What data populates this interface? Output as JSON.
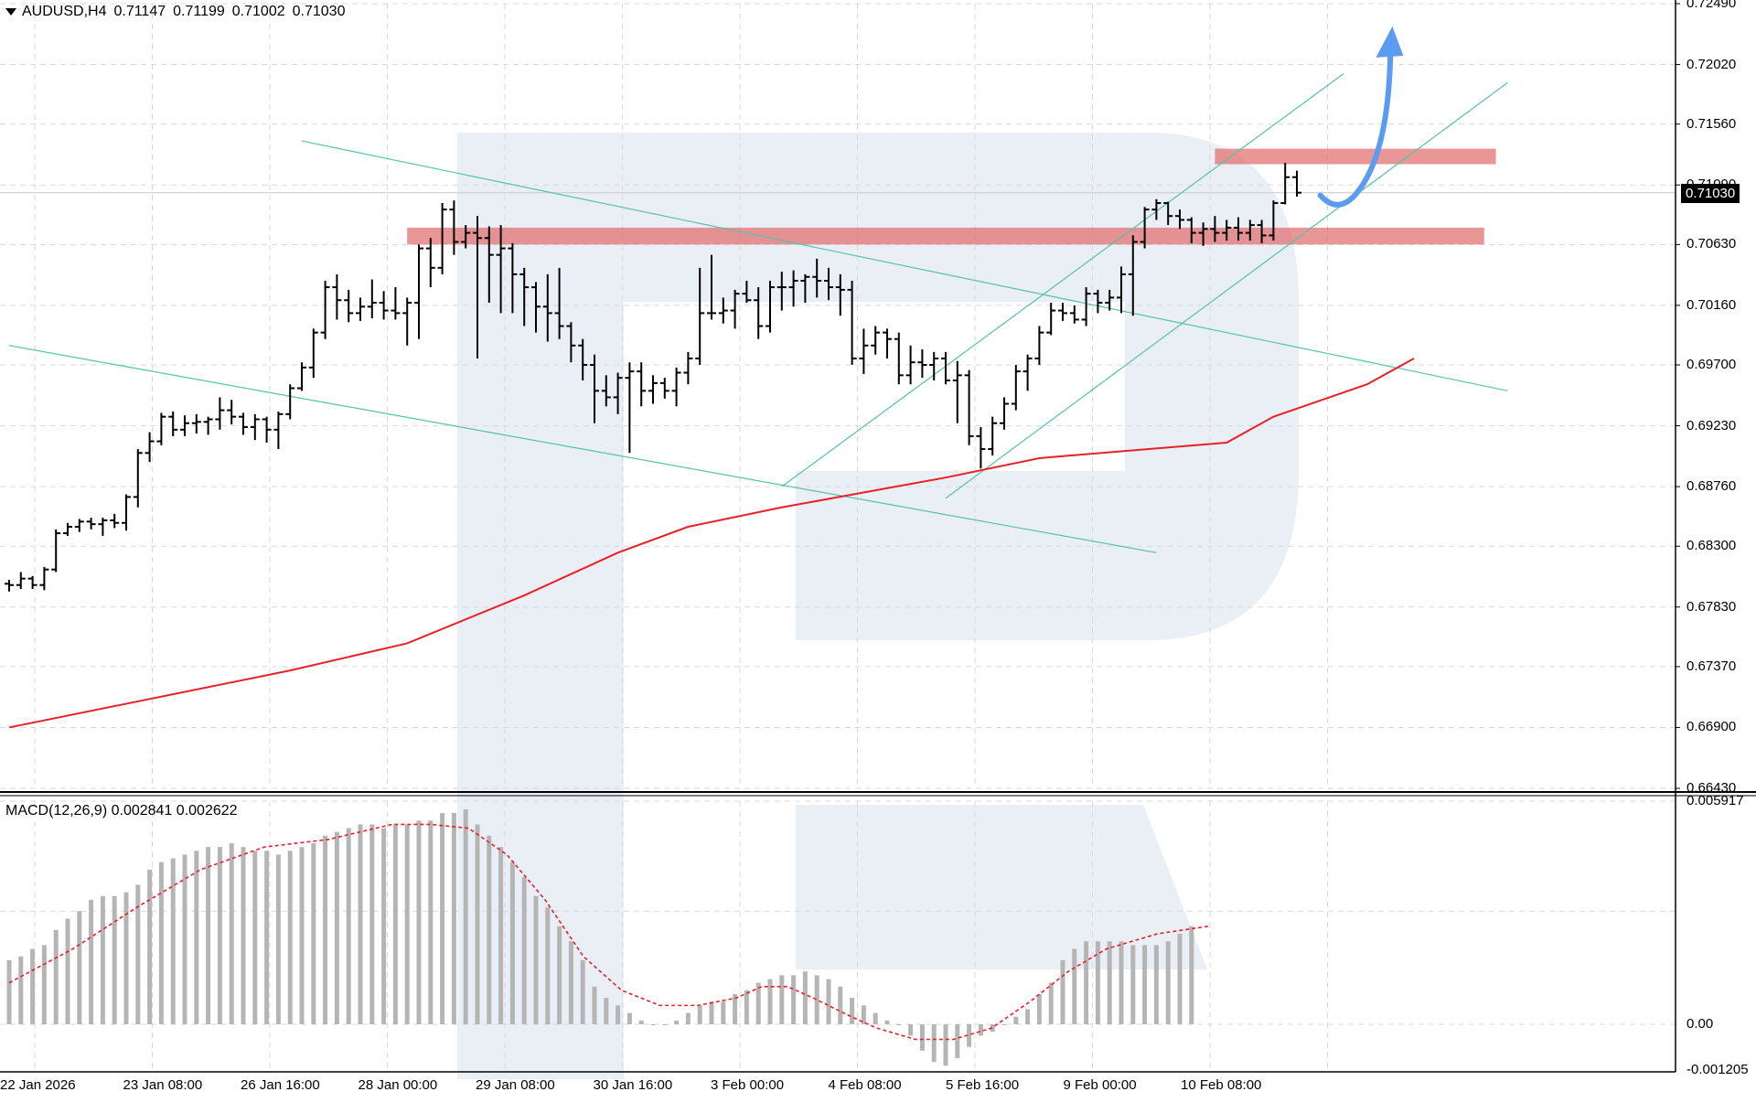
{
  "legend": {
    "symbol": "AUDUSD,H4",
    "open": "0.71147",
    "high": "0.71199",
    "low": "0.71002",
    "close": "0.71030"
  },
  "macd_legend": {
    "name": "MACD(12,26,9)",
    "main": "0.002841",
    "signal": "0.002622"
  },
  "current_price": "0.71030",
  "colors": {
    "grid": "#d9d9d9",
    "bars": "#000000",
    "ma": "#e8202a",
    "channel": "#55c3a6",
    "zone": "#e06a6a",
    "arrow": "#5b9bf0",
    "histogram": "#b5b5b5",
    "signal": "#e8202a",
    "watermark": "#e6ebf3"
  },
  "chart_data": [
    {
      "type": "ohlc",
      "title": "AUDUSD,H4",
      "ylim": [
        0.6643,
        0.7249
      ],
      "y_ticks": [
        "0.72490",
        "0.72020",
        "0.71560",
        "0.71090",
        "0.70630",
        "0.70160",
        "0.69700",
        "0.69230",
        "0.68760",
        "0.68300",
        "0.67830",
        "0.67370",
        "0.66900",
        "0.66430"
      ],
      "x_ticks": [
        "22 Jan 2026",
        "23 Jan 08:00",
        "26 Jan 16:00",
        "28 Jan 00:00",
        "29 Jan 08:00",
        "30 Jan 16:00",
        "3 Feb 00:00",
        "4 Feb 08:00",
        "5 Feb 16:00",
        "9 Feb 00:00",
        "10 Feb 08:00"
      ],
      "grid": true,
      "bars": [
        [
          0.6801,
          0.6804,
          0.6795,
          0.68
        ],
        [
          0.68,
          0.681,
          0.6797,
          0.6805
        ],
        [
          0.6805,
          0.6807,
          0.6797,
          0.68
        ],
        [
          0.68,
          0.6814,
          0.6796,
          0.6812
        ],
        [
          0.6812,
          0.6843,
          0.681,
          0.684
        ],
        [
          0.684,
          0.6848,
          0.6838,
          0.6845
        ],
        [
          0.6845,
          0.6851,
          0.6841,
          0.6849
        ],
        [
          0.6849,
          0.6852,
          0.6843,
          0.6847
        ],
        [
          0.6847,
          0.6852,
          0.6838,
          0.685
        ],
        [
          0.685,
          0.6855,
          0.6844,
          0.6848
        ],
        [
          0.6848,
          0.687,
          0.6842,
          0.6868
        ],
        [
          0.6868,
          0.6905,
          0.686,
          0.6902
        ],
        [
          0.6902,
          0.6918,
          0.6895,
          0.6911
        ],
        [
          0.6911,
          0.6933,
          0.6908,
          0.693
        ],
        [
          0.693,
          0.6934,
          0.6915,
          0.692
        ],
        [
          0.692,
          0.6931,
          0.6915,
          0.6925
        ],
        [
          0.6925,
          0.6932,
          0.6917,
          0.6926
        ],
        [
          0.6926,
          0.693,
          0.6916,
          0.6928
        ],
        [
          0.6928,
          0.6945,
          0.692,
          0.6935
        ],
        [
          0.6935,
          0.6943,
          0.6924,
          0.693
        ],
        [
          0.693,
          0.6933,
          0.6916,
          0.6922
        ],
        [
          0.6922,
          0.6932,
          0.6912,
          0.6928
        ],
        [
          0.6928,
          0.693,
          0.691,
          0.692
        ],
        [
          0.692,
          0.6934,
          0.6905,
          0.6932
        ],
        [
          0.6932,
          0.6955,
          0.6928,
          0.6952
        ],
        [
          0.6952,
          0.6972,
          0.695,
          0.6968
        ],
        [
          0.6968,
          0.6998,
          0.696,
          0.6995
        ],
        [
          0.6995,
          0.7035,
          0.699,
          0.703
        ],
        [
          0.703,
          0.704,
          0.7005,
          0.702
        ],
        [
          0.702,
          0.7028,
          0.7003,
          0.701
        ],
        [
          0.701,
          0.7022,
          0.7004,
          0.7015
        ],
        [
          0.7015,
          0.7036,
          0.7006,
          0.7018
        ],
        [
          0.7018,
          0.7027,
          0.7005,
          0.7012
        ],
        [
          0.7012,
          0.703,
          0.7005,
          0.701
        ],
        [
          0.701,
          0.7022,
          0.6985,
          0.7018
        ],
        [
          0.7018,
          0.7063,
          0.699,
          0.706
        ],
        [
          0.706,
          0.7068,
          0.703,
          0.7045
        ],
        [
          0.7045,
          0.7095,
          0.704,
          0.709
        ],
        [
          0.709,
          0.7097,
          0.7055,
          0.7065
        ],
        [
          0.7065,
          0.7078,
          0.706,
          0.7072
        ],
        [
          0.7072,
          0.7085,
          0.6975,
          0.7068
        ],
        [
          0.7068,
          0.7077,
          0.7018,
          0.7055
        ],
        [
          0.7055,
          0.7078,
          0.701,
          0.706
        ],
        [
          0.706,
          0.7064,
          0.701,
          0.704
        ],
        [
          0.704,
          0.7045,
          0.7,
          0.703
        ],
        [
          0.703,
          0.7034,
          0.6995,
          0.7015
        ],
        [
          0.7015,
          0.704,
          0.6988,
          0.701
        ],
        [
          0.701,
          0.7045,
          0.699,
          0.7
        ],
        [
          0.7,
          0.7003,
          0.6972,
          0.6985
        ],
        [
          0.6985,
          0.699,
          0.6958,
          0.697
        ],
        [
          0.697,
          0.6978,
          0.6925,
          0.695
        ],
        [
          0.695,
          0.6962,
          0.6938,
          0.6945
        ],
        [
          0.6945,
          0.6964,
          0.6932,
          0.696
        ],
        [
          0.696,
          0.6972,
          0.6902,
          0.6965
        ],
        [
          0.6965,
          0.6972,
          0.6938,
          0.695
        ],
        [
          0.695,
          0.6962,
          0.694,
          0.6956
        ],
        [
          0.6956,
          0.696,
          0.6944,
          0.695
        ],
        [
          0.695,
          0.6968,
          0.6938,
          0.6964
        ],
        [
          0.6964,
          0.698,
          0.6955,
          0.6975
        ],
        [
          0.6975,
          0.7045,
          0.697,
          0.701
        ],
        [
          0.701,
          0.7055,
          0.7005,
          0.701
        ],
        [
          0.701,
          0.7022,
          0.7002,
          0.7012
        ],
        [
          0.7012,
          0.7028,
          0.6998,
          0.7025
        ],
        [
          0.7025,
          0.7035,
          0.7018,
          0.702
        ],
        [
          0.702,
          0.703,
          0.699,
          0.7
        ],
        [
          0.7,
          0.7035,
          0.6995,
          0.703
        ],
        [
          0.703,
          0.7042,
          0.7012,
          0.703
        ],
        [
          0.703,
          0.7043,
          0.7015,
          0.7035
        ],
        [
          0.7035,
          0.704,
          0.7018,
          0.7038
        ],
        [
          0.7038,
          0.7052,
          0.7022,
          0.7035
        ],
        [
          0.7035,
          0.7045,
          0.702,
          0.703
        ],
        [
          0.703,
          0.704,
          0.7008,
          0.7028
        ],
        [
          0.7028,
          0.7035,
          0.697,
          0.6975
        ],
        [
          0.6975,
          0.6998,
          0.6963,
          0.6985
        ],
        [
          0.6985,
          0.7,
          0.6978,
          0.6995
        ],
        [
          0.6995,
          0.6998,
          0.6975,
          0.699
        ],
        [
          0.699,
          0.6995,
          0.6955,
          0.6962
        ],
        [
          0.6962,
          0.6985,
          0.6955,
          0.6972
        ],
        [
          0.6972,
          0.6982,
          0.696,
          0.697
        ],
        [
          0.697,
          0.698,
          0.6958,
          0.6975
        ],
        [
          0.6975,
          0.698,
          0.6955,
          0.6958
        ],
        [
          0.6958,
          0.6973,
          0.6925,
          0.6962
        ],
        [
          0.6962,
          0.6966,
          0.6908,
          0.6915
        ],
        [
          0.6915,
          0.6922,
          0.689,
          0.6905
        ],
        [
          0.6905,
          0.693,
          0.69,
          0.6925
        ],
        [
          0.6925,
          0.6945,
          0.692,
          0.694
        ],
        [
          0.694,
          0.697,
          0.6935,
          0.6965
        ],
        [
          0.6965,
          0.6978,
          0.695,
          0.6975
        ],
        [
          0.6975,
          0.7,
          0.697,
          0.6995
        ],
        [
          0.6995,
          0.7018,
          0.6993,
          0.7012
        ],
        [
          0.7012,
          0.7018,
          0.7004,
          0.701
        ],
        [
          0.701,
          0.7016,
          0.7002,
          0.7005
        ],
        [
          0.7005,
          0.703,
          0.7,
          0.7025
        ],
        [
          0.7025,
          0.7028,
          0.701,
          0.7018
        ],
        [
          0.7018,
          0.7028,
          0.7012,
          0.7022
        ],
        [
          0.7022,
          0.7046,
          0.701,
          0.704
        ],
        [
          0.704,
          0.707,
          0.7008,
          0.7065
        ],
        [
          0.7065,
          0.7092,
          0.706,
          0.709
        ],
        [
          0.709,
          0.7098,
          0.7082,
          0.7095
        ],
        [
          0.7095,
          0.7096,
          0.7078,
          0.7085
        ],
        [
          0.7085,
          0.709,
          0.7075,
          0.7082
        ],
        [
          0.7082,
          0.7084,
          0.7064,
          0.7072
        ],
        [
          0.7072,
          0.708,
          0.7062,
          0.7075
        ],
        [
          0.7075,
          0.7085,
          0.7065,
          0.7072
        ],
        [
          0.7072,
          0.7082,
          0.7066,
          0.7076
        ],
        [
          0.7076,
          0.7084,
          0.7066,
          0.7072
        ],
        [
          0.7072,
          0.7082,
          0.7066,
          0.7078
        ],
        [
          0.7078,
          0.7082,
          0.7064,
          0.707
        ],
        [
          0.707,
          0.7097,
          0.7066,
          0.7095
        ],
        [
          0.7095,
          0.7126,
          0.7094,
          0.7115
        ],
        [
          0.7115,
          0.712,
          0.71,
          0.7103
        ]
      ],
      "moving_average": [
        [
          0,
          0.669
        ],
        [
          12,
          0.6712
        ],
        [
          24,
          0.6734
        ],
        [
          34,
          0.6755
        ],
        [
          44,
          0.6792
        ],
        [
          52,
          0.6825
        ],
        [
          58,
          0.6845
        ],
        [
          66,
          0.686
        ],
        [
          80,
          0.6883
        ],
        [
          88,
          0.6898
        ],
        [
          104,
          0.691
        ],
        [
          108,
          0.693
        ],
        [
          116,
          0.6955
        ],
        [
          120,
          0.6975
        ]
      ],
      "channel_lines": [
        {
          "from": [
            0,
            0.6985
          ],
          "to": [
            98,
            0.6825
          ]
        },
        {
          "from": [
            25,
            0.7143
          ],
          "to": [
            128,
            0.695
          ]
        },
        {
          "from": [
            66,
            0.6876
          ],
          "to": [
            114,
            0.7195
          ]
        },
        {
          "from": [
            80,
            0.6867
          ],
          "to": [
            128,
            0.7188
          ]
        }
      ],
      "zones": [
        {
          "from": 34,
          "to": 126,
          "low": 0.7063,
          "high": 0.7076
        },
        {
          "from": 103,
          "to": 127,
          "low": 0.7125,
          "high": 0.7137
        }
      ],
      "forecast_path": [
        [
          112,
          0.7101
        ],
        [
          114,
          0.7094
        ],
        [
          116,
          0.7115
        ],
        [
          117,
          0.716
        ],
        [
          118,
          0.723
        ]
      ]
    },
    {
      "type": "bar",
      "title": "MACD(12,26,9)",
      "ylim": [
        -0.001205,
        0.005917
      ],
      "y_ticks": [
        "0.005917",
        "0.00",
        "-0.001205"
      ],
      "grid": true,
      "histogram": [
        0.0017,
        0.0018,
        0.002,
        0.0021,
        0.0025,
        0.0028,
        0.003,
        0.0033,
        0.0034,
        0.0034,
        0.0035,
        0.0037,
        0.0041,
        0.0043,
        0.0044,
        0.0045,
        0.0046,
        0.0047,
        0.0047,
        0.0048,
        0.0047,
        0.0046,
        0.0046,
        0.0045,
        0.0046,
        0.0047,
        0.0048,
        0.005,
        0.0051,
        0.0052,
        0.0053,
        0.0053,
        0.0052,
        0.0053,
        0.0053,
        0.0054,
        0.0054,
        0.0056,
        0.0056,
        0.0057,
        0.0053,
        0.005,
        0.0047,
        0.0043,
        0.0039,
        0.0034,
        0.0031,
        0.0026,
        0.0022,
        0.0017,
        0.001,
        0.0007,
        0.0005,
        0.0003,
        0.0001,
        0.0,
        0.0,
        0.0001,
        0.0003,
        0.0005,
        0.0006,
        0.0006,
        0.0008,
        0.0009,
        0.0011,
        0.0012,
        0.0013,
        0.0013,
        0.0014,
        0.0013,
        0.0012,
        0.001,
        0.0007,
        0.0005,
        0.0003,
        0.0001,
        0.0,
        -0.0003,
        -0.0007,
        -0.001,
        -0.0011,
        -0.0009,
        -0.0006,
        -0.0003,
        -0.0002,
        0.0,
        0.0002,
        0.0004,
        0.0008,
        0.0011,
        0.0017,
        0.002,
        0.0022,
        0.0022,
        0.0022,
        0.0022,
        0.0021,
        0.0021,
        0.0021,
        0.0022,
        0.0024,
        0.0026
      ],
      "signal": [
        [
          0,
          0.0011
        ],
        [
          10,
          0.002
        ],
        [
          20,
          0.0031
        ],
        [
          30,
          0.0041
        ],
        [
          40,
          0.0047
        ],
        [
          50,
          0.0049
        ],
        [
          55,
          0.0051
        ],
        [
          60,
          0.0053
        ],
        [
          66,
          0.0053
        ],
        [
          72,
          0.0052
        ],
        [
          78,
          0.0045
        ],
        [
          84,
          0.0033
        ],
        [
          90,
          0.0018
        ],
        [
          96,
          0.0009
        ],
        [
          102,
          0.0005
        ],
        [
          108,
          0.0005
        ],
        [
          114,
          0.0007
        ],
        [
          118,
          0.001
        ],
        [
          122,
          0.001
        ],
        [
          126,
          0.0007
        ],
        [
          132,
          0.0002
        ],
        [
          136,
          -0.0001
        ],
        [
          142,
          -0.0004
        ],
        [
          148,
          -0.0004
        ],
        [
          154,
          -0.0001
        ],
        [
          160,
          0.0006
        ],
        [
          166,
          0.0014
        ],
        [
          172,
          0.002
        ],
        [
          180,
          0.0024
        ],
        [
          188,
          0.0026
        ]
      ]
    }
  ]
}
